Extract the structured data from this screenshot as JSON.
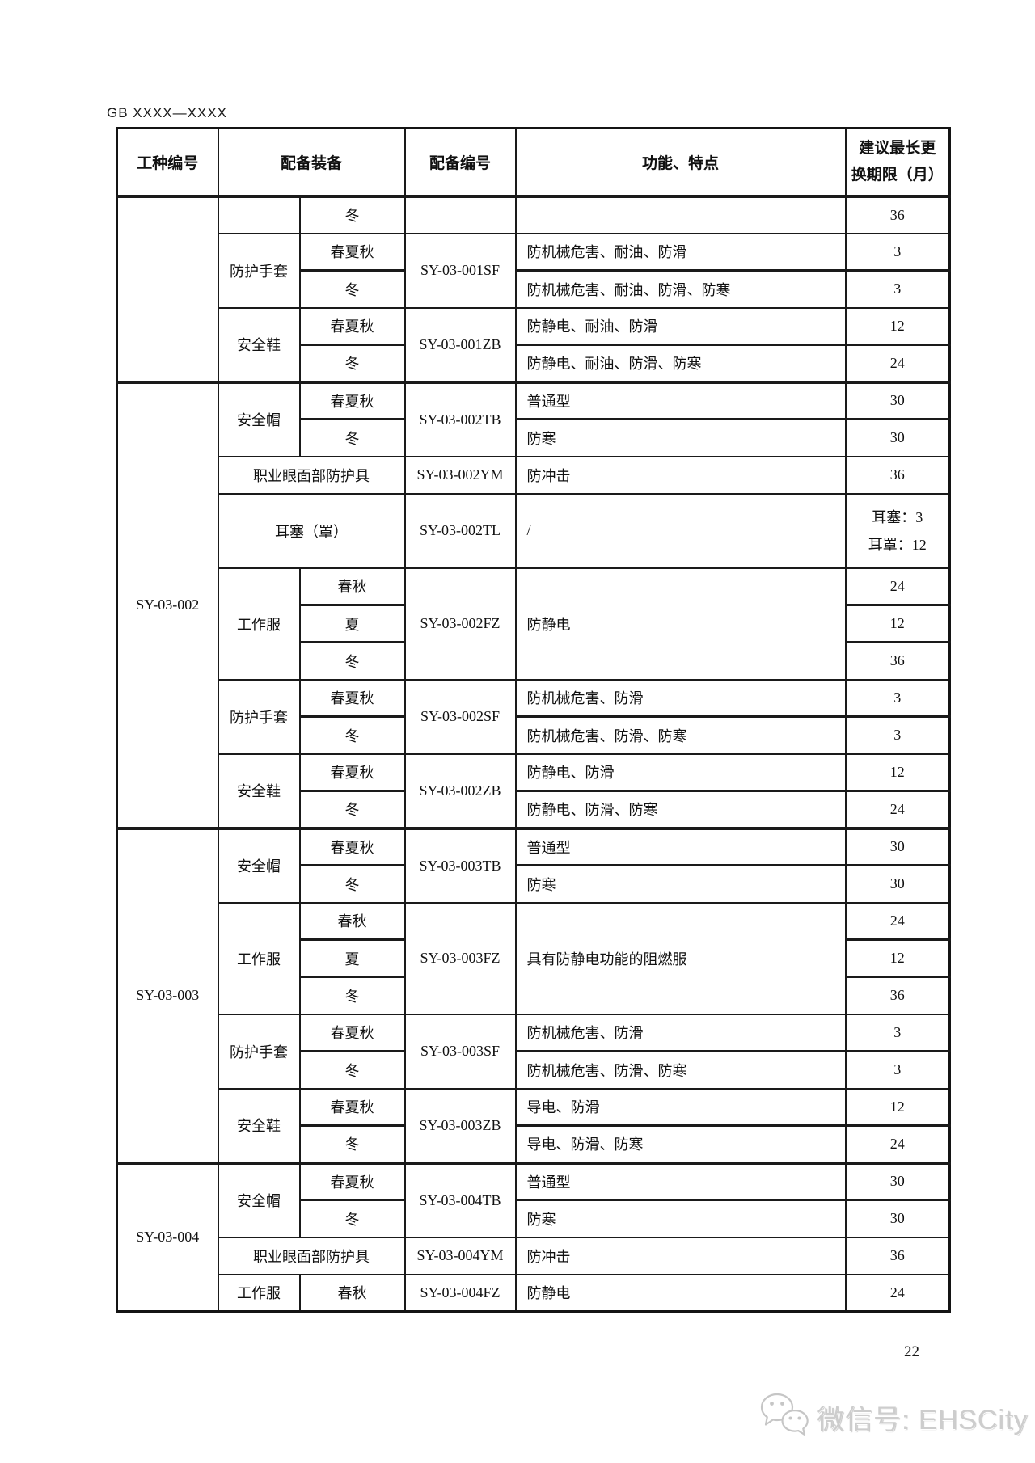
{
  "page": {
    "doc_code": "GB XXXX—XXXX",
    "page_number": "22",
    "watermark_text": "微信号: EHSCity",
    "colors": {
      "table_border": "#1a1a1a",
      "watermark_gray": "#cdcdcd",
      "background": "#ffffff"
    }
  },
  "table": {
    "header": [
      {
        "label": "工种编号"
      },
      {
        "label": "配备装备",
        "colspan": 2
      },
      {
        "label": "配备编号"
      },
      {
        "label": "功能、特点"
      },
      {
        "label": "建议最长更\n换期限（月）",
        "wrap": true
      }
    ],
    "rows": [
      {
        "cells": [
          {
            "text": "",
            "rowspan": 5,
            "name": "worktype-cell"
          },
          {
            "text": "",
            "name": "equipment-cell"
          },
          {
            "text": "冬",
            "name": "season-cell"
          },
          {
            "text": "",
            "name": "code-cell"
          },
          {
            "text": "",
            "cls": "func",
            "name": "function-cell"
          },
          {
            "text": "36",
            "name": "period-cell"
          }
        ]
      },
      {
        "cells": [
          {
            "text": "防护手套",
            "rowspan": 2,
            "name": "equipment-cell"
          },
          {
            "text": "春夏秋",
            "name": "season-cell"
          },
          {
            "text": "SY-03-001SF",
            "rowspan": 2,
            "name": "code-cell"
          },
          {
            "text": "防机械危害、耐油、防滑",
            "cls": "func",
            "name": "function-cell"
          },
          {
            "text": "3",
            "name": "period-cell"
          }
        ]
      },
      {
        "sep": true,
        "cells": [
          {
            "text": "冬",
            "name": "season-cell"
          },
          {
            "text": "防机械危害、耐油、防滑、防寒",
            "cls": "func",
            "name": "function-cell"
          },
          {
            "text": "3",
            "name": "period-cell"
          }
        ]
      },
      {
        "cells": [
          {
            "text": "安全鞋",
            "rowspan": 2,
            "name": "equipment-cell"
          },
          {
            "text": "春夏秋",
            "name": "season-cell"
          },
          {
            "text": "SY-03-001ZB",
            "rowspan": 2,
            "name": "code-cell"
          },
          {
            "text": "防静电、耐油、防滑",
            "cls": "func",
            "name": "function-cell"
          },
          {
            "text": "12",
            "name": "period-cell"
          }
        ]
      },
      {
        "sep": true,
        "cells": [
          {
            "text": "冬",
            "name": "season-cell"
          },
          {
            "text": "防静电、耐油、防滑、防寒",
            "cls": "func",
            "name": "function-cell"
          },
          {
            "text": "24",
            "name": "period-cell"
          }
        ]
      },
      {
        "section": true,
        "cells": [
          {
            "text": "SY-03-002",
            "rowspan": 11,
            "name": "worktype-cell"
          },
          {
            "text": "安全帽",
            "rowspan": 2,
            "name": "equipment-cell"
          },
          {
            "text": "春夏秋",
            "name": "season-cell"
          },
          {
            "text": "SY-03-002TB",
            "rowspan": 2,
            "name": "code-cell"
          },
          {
            "text": "普通型",
            "cls": "func",
            "name": "function-cell"
          },
          {
            "text": "30",
            "name": "period-cell"
          }
        ]
      },
      {
        "sep": true,
        "cells": [
          {
            "text": "冬",
            "name": "season-cell"
          },
          {
            "text": "防寒",
            "cls": "func",
            "name": "function-cell"
          },
          {
            "text": "30",
            "name": "period-cell"
          }
        ]
      },
      {
        "cells": [
          {
            "text": "职业眼面部防护具",
            "colspan": 2,
            "name": "equipment-cell"
          },
          {
            "text": "SY-03-002YM",
            "name": "code-cell"
          },
          {
            "text": "防冲击",
            "cls": "func",
            "name": "function-cell"
          },
          {
            "text": "36",
            "name": "period-cell"
          }
        ]
      },
      {
        "tall": true,
        "cells": [
          {
            "text": "耳塞（罩）",
            "colspan": 2,
            "name": "equipment-cell"
          },
          {
            "text": "SY-03-002TL",
            "name": "code-cell"
          },
          {
            "text": "/",
            "cls": "func",
            "name": "function-cell"
          },
          {
            "text": "耳塞：3\n耳罩：12",
            "cls": "multi",
            "name": "period-cell"
          }
        ]
      },
      {
        "cells": [
          {
            "text": "工作服",
            "rowspan": 3,
            "name": "equipment-cell"
          },
          {
            "text": "春秋",
            "name": "season-cell"
          },
          {
            "text": "SY-03-002FZ",
            "rowspan": 3,
            "name": "code-cell"
          },
          {
            "text": "防静电",
            "rowspan": 3,
            "cls": "func",
            "name": "function-cell"
          },
          {
            "text": "24",
            "name": "period-cell"
          }
        ]
      },
      {
        "sep": true,
        "cells": [
          {
            "text": "夏",
            "name": "season-cell"
          },
          {
            "text": "12",
            "name": "period-cell"
          }
        ]
      },
      {
        "sep": true,
        "cells": [
          {
            "text": "冬",
            "name": "season-cell"
          },
          {
            "text": "36",
            "name": "period-cell"
          }
        ]
      },
      {
        "cells": [
          {
            "text": "防护手套",
            "rowspan": 2,
            "name": "equipment-cell"
          },
          {
            "text": "春夏秋",
            "name": "season-cell"
          },
          {
            "text": "SY-03-002SF",
            "rowspan": 2,
            "name": "code-cell"
          },
          {
            "text": "防机械危害、防滑",
            "cls": "func",
            "name": "function-cell"
          },
          {
            "text": "3",
            "name": "period-cell"
          }
        ]
      },
      {
        "sep": true,
        "cells": [
          {
            "text": "冬",
            "name": "season-cell"
          },
          {
            "text": "防机械危害、防滑、防寒",
            "cls": "func",
            "name": "function-cell"
          },
          {
            "text": "3",
            "name": "period-cell"
          }
        ]
      },
      {
        "cells": [
          {
            "text": "安全鞋",
            "rowspan": 2,
            "name": "equipment-cell"
          },
          {
            "text": "春夏秋",
            "name": "season-cell"
          },
          {
            "text": "SY-03-002ZB",
            "rowspan": 2,
            "name": "code-cell"
          },
          {
            "text": "防静电、防滑",
            "cls": "func",
            "name": "function-cell"
          },
          {
            "text": "12",
            "name": "period-cell"
          }
        ]
      },
      {
        "sep": true,
        "cells": [
          {
            "text": "冬",
            "name": "season-cell"
          },
          {
            "text": "防静电、防滑、防寒",
            "cls": "func",
            "name": "function-cell"
          },
          {
            "text": "24",
            "name": "period-cell"
          }
        ]
      },
      {
        "section": true,
        "cells": [
          {
            "text": "SY-03-003",
            "rowspan": 9,
            "name": "worktype-cell"
          },
          {
            "text": "安全帽",
            "rowspan": 2,
            "name": "equipment-cell"
          },
          {
            "text": "春夏秋",
            "name": "season-cell"
          },
          {
            "text": "SY-03-003TB",
            "rowspan": 2,
            "name": "code-cell"
          },
          {
            "text": "普通型",
            "cls": "func",
            "name": "function-cell"
          },
          {
            "text": "30",
            "name": "period-cell"
          }
        ]
      },
      {
        "sep": true,
        "cells": [
          {
            "text": "冬",
            "name": "season-cell"
          },
          {
            "text": "防寒",
            "cls": "func",
            "name": "function-cell"
          },
          {
            "text": "30",
            "name": "period-cell"
          }
        ]
      },
      {
        "cells": [
          {
            "text": "工作服",
            "rowspan": 3,
            "name": "equipment-cell"
          },
          {
            "text": "春秋",
            "name": "season-cell"
          },
          {
            "text": "SY-03-003FZ",
            "rowspan": 3,
            "name": "code-cell"
          },
          {
            "text": "具有防静电功能的阻燃服",
            "rowspan": 3,
            "cls": "func",
            "name": "function-cell"
          },
          {
            "text": "24",
            "name": "period-cell"
          }
        ]
      },
      {
        "sep": true,
        "cells": [
          {
            "text": "夏",
            "name": "season-cell"
          },
          {
            "text": "12",
            "name": "period-cell"
          }
        ]
      },
      {
        "sep": true,
        "cells": [
          {
            "text": "冬",
            "name": "season-cell"
          },
          {
            "text": "36",
            "name": "period-cell"
          }
        ]
      },
      {
        "cells": [
          {
            "text": "防护手套",
            "rowspan": 2,
            "name": "equipment-cell"
          },
          {
            "text": "春夏秋",
            "name": "season-cell"
          },
          {
            "text": "SY-03-003SF",
            "rowspan": 2,
            "name": "code-cell"
          },
          {
            "text": "防机械危害、防滑",
            "cls": "func",
            "name": "function-cell"
          },
          {
            "text": "3",
            "name": "period-cell"
          }
        ]
      },
      {
        "sep": true,
        "cells": [
          {
            "text": "冬",
            "name": "season-cell"
          },
          {
            "text": "防机械危害、防滑、防寒",
            "cls": "func",
            "name": "function-cell"
          },
          {
            "text": "3",
            "name": "period-cell"
          }
        ]
      },
      {
        "cells": [
          {
            "text": "安全鞋",
            "rowspan": 2,
            "name": "equipment-cell"
          },
          {
            "text": "春夏秋",
            "name": "season-cell"
          },
          {
            "text": "SY-03-003ZB",
            "rowspan": 2,
            "name": "code-cell"
          },
          {
            "text": "导电、防滑",
            "cls": "func",
            "name": "function-cell"
          },
          {
            "text": "12",
            "name": "period-cell"
          }
        ]
      },
      {
        "sep": true,
        "cells": [
          {
            "text": "冬",
            "name": "season-cell"
          },
          {
            "text": "导电、防滑、防寒",
            "cls": "func",
            "name": "function-cell"
          },
          {
            "text": "24",
            "name": "period-cell"
          }
        ]
      },
      {
        "section": true,
        "cells": [
          {
            "text": "SY-03-004",
            "rowspan": 4,
            "name": "worktype-cell"
          },
          {
            "text": "安全帽",
            "rowspan": 2,
            "name": "equipment-cell"
          },
          {
            "text": "春夏秋",
            "name": "season-cell"
          },
          {
            "text": "SY-03-004TB",
            "rowspan": 2,
            "name": "code-cell"
          },
          {
            "text": "普通型",
            "cls": "func",
            "name": "function-cell"
          },
          {
            "text": "30",
            "name": "period-cell"
          }
        ]
      },
      {
        "sep": true,
        "cells": [
          {
            "text": "冬",
            "name": "season-cell"
          },
          {
            "text": "防寒",
            "cls": "func",
            "name": "function-cell"
          },
          {
            "text": "30",
            "name": "period-cell"
          }
        ]
      },
      {
        "cells": [
          {
            "text": "职业眼面部防护具",
            "colspan": 2,
            "name": "equipment-cell"
          },
          {
            "text": "SY-03-004YM",
            "name": "code-cell"
          },
          {
            "text": "防冲击",
            "cls": "func",
            "name": "function-cell"
          },
          {
            "text": "36",
            "name": "period-cell"
          }
        ]
      },
      {
        "cells": [
          {
            "text": "工作服",
            "name": "equipment-cell"
          },
          {
            "text": "春秋",
            "name": "season-cell"
          },
          {
            "text": "SY-03-004FZ",
            "name": "code-cell"
          },
          {
            "text": "防静电",
            "cls": "func",
            "name": "function-cell"
          },
          {
            "text": "24",
            "name": "period-cell"
          }
        ]
      }
    ]
  }
}
